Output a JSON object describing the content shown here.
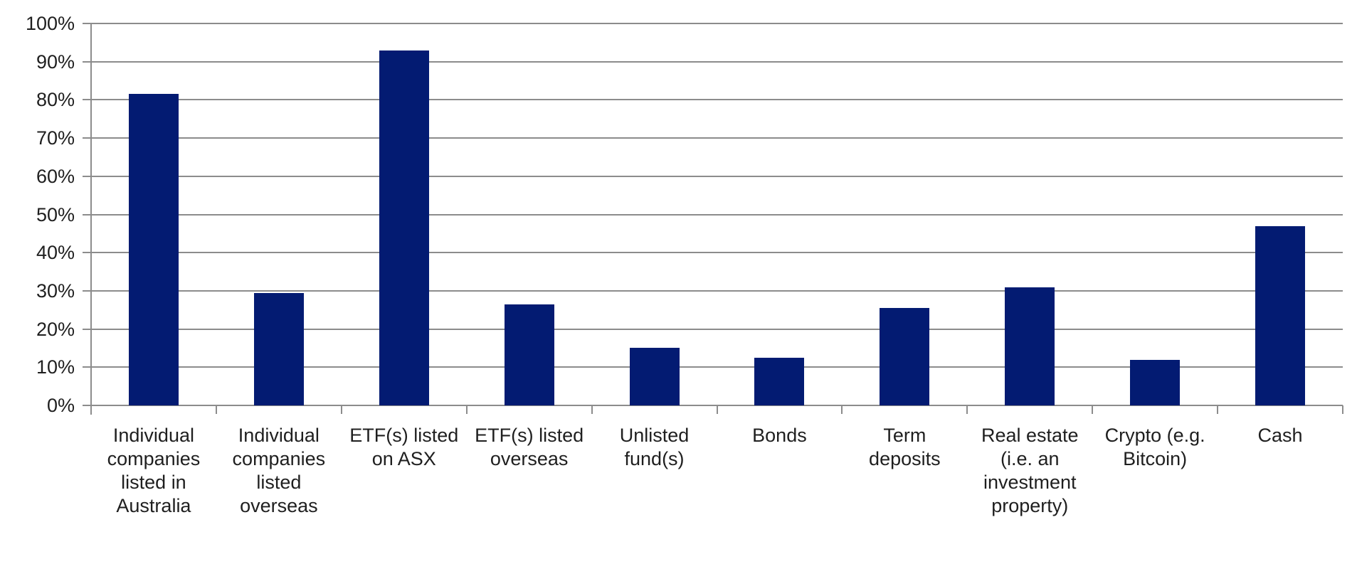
{
  "chart_data": {
    "type": "bar",
    "title": "",
    "xlabel": "",
    "ylabel": "",
    "categories": [
      "Individual\ncompanies\nlisted in\nAustralia",
      "Individual\ncompanies\nlisted\noverseas",
      "ETF(s) listed\non ASX",
      "ETF(s) listed\noverseas",
      "Unlisted\nfund(s)",
      "Bonds",
      "Term\ndeposits",
      "Real estate\n(i.e. an\ninvestment\nproperty)",
      "Crypto (e.g.\nBitcoin)",
      "Cash"
    ],
    "values": [
      81.5,
      29.5,
      93,
      26.5,
      15,
      12.5,
      25.5,
      31,
      12,
      47
    ],
    "unit": "%",
    "ylim": [
      0,
      100
    ],
    "ytick_step": 10,
    "ytick_labels": [
      "0%",
      "10%",
      "20%",
      "30%",
      "40%",
      "50%",
      "60%",
      "70%",
      "80%",
      "90%",
      "100%"
    ],
    "grid": true,
    "legend": false,
    "colors": {
      "bar": "#031B72",
      "grid": "#8C8C8C",
      "axis": "#8C8C8C",
      "text": "#1F1F1F",
      "background": "#FFFFFF"
    }
  }
}
